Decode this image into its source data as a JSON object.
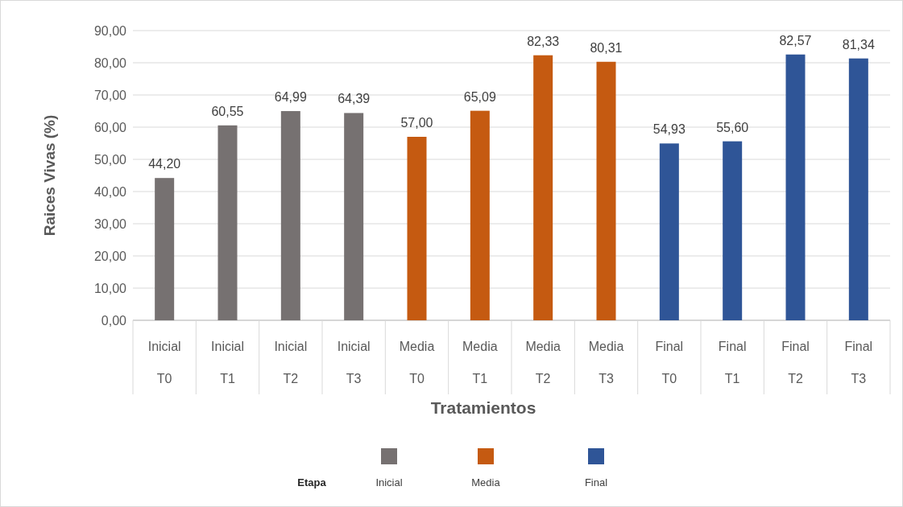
{
  "chart_data": {
    "type": "bar",
    "xlabel": "Tratamientos",
    "ylabel": "Raices Vivas (%)",
    "legend_title": "Etapa",
    "legend": "bottom",
    "grid": "y",
    "categories": [
      "Inicial T0",
      "Inicial T1",
      "Inicial T2",
      "Inicial T3",
      "Media T0",
      "Media T1",
      "Media T2",
      "Media T3",
      "Final T0",
      "Final T1",
      "Final T2",
      "Final T3"
    ],
    "ylim": [
      0,
      90
    ],
    "yticks": [
      {
        "value": 0,
        "label": "0,00"
      },
      {
        "value": 10,
        "label": "10,00"
      },
      {
        "value": 20,
        "label": "20,00"
      },
      {
        "value": 30,
        "label": "30,00"
      },
      {
        "value": 40,
        "label": "40,00"
      },
      {
        "value": 50,
        "label": "50,00"
      },
      {
        "value": 60,
        "label": "60,00"
      },
      {
        "value": 70,
        "label": "70,00"
      },
      {
        "value": 80,
        "label": "80,00"
      },
      {
        "value": 90,
        "label": "90,00"
      }
    ],
    "series": [
      {
        "name": "Inicial",
        "color": "#767171",
        "values": [
          44.2,
          60.55,
          64.99,
          64.39,
          null,
          null,
          null,
          null,
          null,
          null,
          null,
          null
        ],
        "value_labels": [
          "44,20",
          "60,55",
          "64,99",
          "64,39",
          null,
          null,
          null,
          null,
          null,
          null,
          null,
          null
        ]
      },
      {
        "name": "Media",
        "color": "#c55a11",
        "values": [
          null,
          null,
          null,
          null,
          57.0,
          65.09,
          82.33,
          80.31,
          null,
          null,
          null,
          null
        ],
        "value_labels": [
          null,
          null,
          null,
          null,
          "57,00",
          "65,09",
          "82,33",
          "80,31",
          null,
          null,
          null,
          null
        ]
      },
      {
        "name": "Final",
        "color": "#2f5597",
        "values": [
          null,
          null,
          null,
          null,
          null,
          null,
          null,
          null,
          54.93,
          55.6,
          82.57,
          81.34
        ],
        "value_labels": [
          null,
          null,
          null,
          null,
          null,
          null,
          null,
          null,
          "54,93",
          "55,60",
          "82,57",
          "81,34"
        ]
      }
    ]
  }
}
